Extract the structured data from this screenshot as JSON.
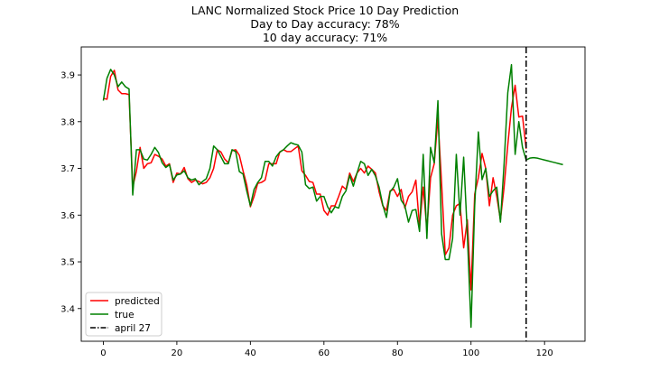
{
  "chart_data": {
    "type": "line",
    "title": "LANC Normalized Stock Price 10 Day Prediction",
    "subtitle_lines": [
      "Day to Day accuracy: 78%",
      "10 day accuracy: 71%"
    ],
    "xlabel": "",
    "ylabel": "",
    "xlim": [
      -6,
      131
    ],
    "ylim": [
      3.33,
      3.96
    ],
    "xticks": [
      0,
      20,
      40,
      60,
      80,
      100,
      120
    ],
    "yticks": [
      3.4,
      3.5,
      3.6,
      3.7,
      3.8,
      3.9
    ],
    "xtick_labels": [
      "0",
      "20",
      "40",
      "60",
      "80",
      "100",
      "120"
    ],
    "ytick_labels": [
      "3.4",
      "3.5",
      "3.6",
      "3.7",
      "3.8",
      "3.9"
    ],
    "grid": false,
    "legend_position": "lower-left",
    "series": [
      {
        "name": "predicted",
        "color": "#ff0000",
        "x_start": 0,
        "values": [
          3.85,
          3.848,
          3.897,
          3.91,
          3.868,
          3.86,
          3.86,
          3.858,
          3.66,
          3.694,
          3.745,
          3.7,
          3.71,
          3.712,
          3.73,
          3.726,
          3.72,
          3.705,
          3.71,
          3.67,
          3.69,
          3.688,
          3.702,
          3.678,
          3.67,
          3.675,
          3.672,
          3.667,
          3.67,
          3.68,
          3.7,
          3.74,
          3.735,
          3.72,
          3.712,
          3.738,
          3.74,
          3.728,
          3.695,
          3.665,
          3.618,
          3.64,
          3.668,
          3.67,
          3.675,
          3.71,
          3.71,
          3.71,
          3.735,
          3.74,
          3.736,
          3.736,
          3.742,
          3.748,
          3.695,
          3.685,
          3.672,
          3.67,
          3.645,
          3.645,
          3.61,
          3.6,
          3.62,
          3.62,
          3.64,
          3.662,
          3.655,
          3.69,
          3.672,
          3.69,
          3.7,
          3.69,
          3.705,
          3.698,
          3.69,
          3.65,
          3.62,
          3.61,
          3.652,
          3.655,
          3.64,
          3.655,
          3.615,
          3.64,
          3.65,
          3.675,
          3.575,
          3.66,
          3.57,
          3.68,
          3.71,
          3.808,
          3.668,
          3.515,
          3.53,
          3.6,
          3.62,
          3.625,
          3.53,
          3.59,
          3.44,
          3.645,
          3.68,
          3.732,
          3.7,
          3.62,
          3.68,
          3.64,
          3.59,
          3.66,
          3.75,
          3.83,
          3.878,
          3.81,
          3.812,
          3.742
        ]
      },
      {
        "name": "true",
        "color": "#008000",
        "x_start": 0,
        "values": [
          3.845,
          3.893,
          3.912,
          3.9,
          3.875,
          3.885,
          3.875,
          3.87,
          3.643,
          3.74,
          3.74,
          3.72,
          3.718,
          3.73,
          3.745,
          3.734,
          3.712,
          3.702,
          3.708,
          3.675,
          3.686,
          3.688,
          3.695,
          3.68,
          3.675,
          3.678,
          3.665,
          3.672,
          3.678,
          3.7,
          3.748,
          3.74,
          3.725,
          3.71,
          3.71,
          3.74,
          3.736,
          3.693,
          3.688,
          3.652,
          3.62,
          3.655,
          3.67,
          3.68,
          3.715,
          3.715,
          3.705,
          3.725,
          3.735,
          3.74,
          3.748,
          3.755,
          3.752,
          3.75,
          3.735,
          3.665,
          3.657,
          3.66,
          3.63,
          3.64,
          3.64,
          3.618,
          3.605,
          3.618,
          3.615,
          3.64,
          3.652,
          3.685,
          3.662,
          3.69,
          3.715,
          3.71,
          3.685,
          3.698,
          3.684,
          3.66,
          3.622,
          3.595,
          3.65,
          3.66,
          3.678,
          3.632,
          3.62,
          3.585,
          3.61,
          3.612,
          3.565,
          3.73,
          3.55,
          3.745,
          3.712,
          3.845,
          3.56,
          3.505,
          3.505,
          3.55,
          3.73,
          3.6,
          3.724,
          3.56,
          3.36,
          3.62,
          3.778,
          3.676,
          3.7,
          3.64,
          3.652,
          3.66,
          3.585,
          3.71,
          3.862,
          3.922,
          3.73,
          3.8,
          3.745,
          3.718,
          3.722,
          3.723,
          3.722,
          3.72,
          3.718,
          3.716,
          3.714,
          3.712,
          3.71,
          3.708
        ]
      }
    ],
    "vline": {
      "name": "april 27",
      "x": 115,
      "color": "#000000",
      "style": "dash-dot"
    }
  }
}
